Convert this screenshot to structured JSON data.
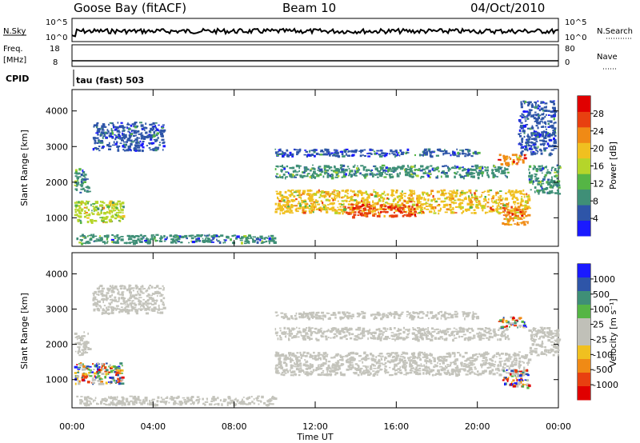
{
  "header": {
    "station": "Goose Bay (fitACF)",
    "beam": "Beam 10",
    "date": "04/Oct/2010"
  },
  "strip1": {
    "left_label": "N.Sky",
    "right_label": "N.Search",
    "left_ticks": [
      "10^5",
      "10^0"
    ],
    "right_ticks": [
      "10^5",
      "10^0"
    ]
  },
  "strip2": {
    "left_label_1": "Freq.",
    "left_label_2": "[MHz]",
    "right_label": "Nave",
    "left_ticks": [
      "18",
      "8"
    ],
    "right_ticks": [
      "80",
      "0"
    ]
  },
  "cpid": {
    "label": "CPID",
    "text": "tau (fast) 503"
  },
  "chart_data": [
    {
      "type": "heatmap",
      "name": "power",
      "xlabel": "",
      "ylabel": "Slant Range [km]",
      "x_ticks": [
        "00:00",
        "04:00",
        "08:00",
        "12:00",
        "16:00",
        "20:00",
        "00:00"
      ],
      "xlim_hours": [
        0,
        24
      ],
      "y_ticks": [
        1000,
        2000,
        3000,
        4000
      ],
      "ylim": [
        200,
        4600
      ],
      "colorbar": {
        "label": "Power [dB]",
        "ticks": [
          4,
          8,
          12,
          16,
          20,
          24,
          28
        ],
        "range": [
          0,
          32
        ],
        "colors": [
          "#1a1aff",
          "#2e55a8",
          "#3f8f77",
          "#55b545",
          "#b5d52a",
          "#f0c020",
          "#f08a15",
          "#e84010",
          "#e00000"
        ]
      },
      "regions": [
        {
          "t0": 10.0,
          "t1": 22.5,
          "r0": 1150,
          "r1": 1800,
          "value": 20
        },
        {
          "t0": 13.5,
          "t1": 17.0,
          "r0": 1050,
          "r1": 1400,
          "value": 26
        },
        {
          "t0": 10.0,
          "t1": 21.5,
          "r0": 2150,
          "r1": 2500,
          "value": 8
        },
        {
          "t0": 10.0,
          "t1": 20.0,
          "r0": 2750,
          "r1": 2950,
          "value": 6
        },
        {
          "t0": 0.1,
          "t1": 2.5,
          "r0": 900,
          "r1": 1500,
          "value": 16
        },
        {
          "t0": 0.1,
          "t1": 0.8,
          "r0": 1700,
          "r1": 2400,
          "value": 10
        },
        {
          "t0": 1.0,
          "t1": 4.5,
          "r0": 2900,
          "r1": 3700,
          "value": 6
        },
        {
          "t0": 0.2,
          "t1": 10.0,
          "r0": 300,
          "r1": 550,
          "value": 8
        },
        {
          "t0": 21.0,
          "t1": 22.3,
          "r0": 2500,
          "r1": 2800,
          "value": 22
        },
        {
          "t0": 21.2,
          "t1": 22.5,
          "r0": 800,
          "r1": 1300,
          "value": 22
        },
        {
          "t0": 22.5,
          "t1": 24.0,
          "r0": 1700,
          "r1": 2500,
          "value": 8
        },
        {
          "t0": 22.0,
          "t1": 23.8,
          "r0": 2800,
          "r1": 4300,
          "value": 6
        }
      ]
    },
    {
      "type": "heatmap",
      "name": "velocity",
      "xlabel": "Time UT",
      "ylabel": "Slant Range [km]",
      "x_ticks": [
        "00:00",
        "04:00",
        "08:00",
        "12:00",
        "16:00",
        "20:00",
        "00:00"
      ],
      "xlim_hours": [
        0,
        24
      ],
      "y_ticks": [
        1000,
        2000,
        3000,
        4000
      ],
      "ylim": [
        200,
        4600
      ],
      "colorbar": {
        "label": "Velocity [m s⁻¹]",
        "ticks": [
          "1000",
          "500",
          "100",
          "25",
          "-25",
          "-100",
          "-500",
          "-1000"
        ],
        "colors": [
          "#1a1aff",
          "#2e55a8",
          "#3f8f77",
          "#55b545",
          "#c0c0b8",
          "#c0c0b8",
          "#f0c020",
          "#f08a15",
          "#e84010",
          "#e00000"
        ]
      },
      "regions": [
        {
          "t0": 10.0,
          "t1": 22.5,
          "r0": 1150,
          "r1": 1800,
          "value": "gray"
        },
        {
          "t0": 10.0,
          "t1": 21.5,
          "r0": 2150,
          "r1": 2500,
          "value": "gray"
        },
        {
          "t0": 10.0,
          "t1": 20.0,
          "r0": 2750,
          "r1": 2950,
          "value": "gray"
        },
        {
          "t0": 0.1,
          "t1": 2.5,
          "r0": 900,
          "r1": 1500,
          "value": "mixed"
        },
        {
          "t0": 0.1,
          "t1": 0.8,
          "r0": 1700,
          "r1": 2400,
          "value": "gray"
        },
        {
          "t0": 1.0,
          "t1": 4.5,
          "r0": 2900,
          "r1": 3700,
          "value": "gray"
        },
        {
          "t0": 0.2,
          "t1": 10.0,
          "r0": 300,
          "r1": 550,
          "value": "gray"
        },
        {
          "t0": 21.0,
          "t1": 22.3,
          "r0": 2500,
          "r1": 2800,
          "value": "mixed"
        },
        {
          "t0": 21.2,
          "t1": 22.5,
          "r0": 800,
          "r1": 1300,
          "value": "mixed"
        },
        {
          "t0": 22.5,
          "t1": 24.0,
          "r0": 1700,
          "r1": 2500,
          "value": "gray"
        }
      ]
    }
  ]
}
